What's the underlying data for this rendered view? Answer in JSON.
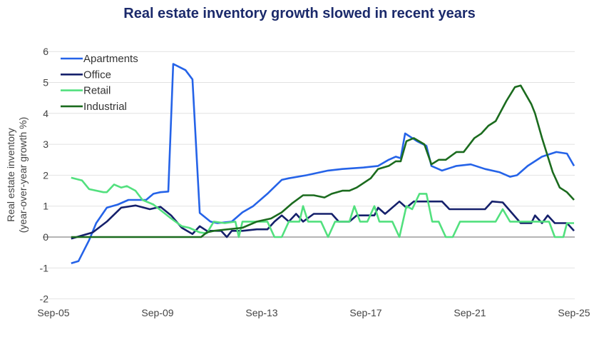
{
  "chart_data": {
    "type": "line",
    "title": "Real estate inventory growth slowed in recent years",
    "ylabel": [
      "Real estate inventory",
      "(year-over-year growth %)"
    ],
    "xlabel": "",
    "ylim": [
      -2,
      6
    ],
    "yticks": [
      -2,
      -1,
      0,
      1,
      2,
      3,
      4,
      5,
      6
    ],
    "xticks": [
      {
        "label": "Sep-05",
        "year": 2005.75
      },
      {
        "label": "Sep-09",
        "year": 2009.75
      },
      {
        "label": "Sep-13",
        "year": 2013.75
      },
      {
        "label": "Sep-17",
        "year": 2017.75
      },
      {
        "label": "Sep-21",
        "year": 2021.75
      },
      {
        "label": "Sep-25",
        "year": 2025.75
      }
    ],
    "grid": "horizontal",
    "legend": "top-left",
    "series": [
      {
        "name": "Apartments",
        "color": "#2563e8",
        "points": [
          [
            2006.43,
            -0.85
          ],
          [
            2006.71,
            -0.78
          ],
          [
            2007.12,
            -0.1
          ],
          [
            2007.39,
            0.45
          ],
          [
            2007.8,
            0.95
          ],
          [
            2008.22,
            1.05
          ],
          [
            2008.63,
            1.2
          ],
          [
            2009.31,
            1.2
          ],
          [
            2009.59,
            1.4
          ],
          [
            2009.86,
            1.45
          ],
          [
            2010.16,
            1.47
          ],
          [
            2010.35,
            5.6
          ],
          [
            2010.82,
            5.4
          ],
          [
            2011.09,
            5.1
          ],
          [
            2011.37,
            0.78
          ],
          [
            2011.78,
            0.5
          ],
          [
            2012.05,
            0.45
          ],
          [
            2012.6,
            0.5
          ],
          [
            2013.01,
            0.8
          ],
          [
            2013.42,
            1.0
          ],
          [
            2013.97,
            1.4
          ],
          [
            2014.52,
            1.85
          ],
          [
            2014.79,
            1.9
          ],
          [
            2015.48,
            2.0
          ],
          [
            2016.3,
            2.15
          ],
          [
            2016.85,
            2.2
          ],
          [
            2017.67,
            2.25
          ],
          [
            2018.22,
            2.3
          ],
          [
            2018.63,
            2.5
          ],
          [
            2018.9,
            2.6
          ],
          [
            2019.09,
            2.55
          ],
          [
            2019.26,
            3.35
          ],
          [
            2019.72,
            3.1
          ],
          [
            2020.08,
            2.95
          ],
          [
            2020.27,
            2.3
          ],
          [
            2020.68,
            2.15
          ],
          [
            2021.23,
            2.3
          ],
          [
            2021.78,
            2.35
          ],
          [
            2022.33,
            2.2
          ],
          [
            2022.88,
            2.1
          ],
          [
            2023.29,
            1.95
          ],
          [
            2023.56,
            2.0
          ],
          [
            2023.97,
            2.3
          ],
          [
            2024.52,
            2.6
          ],
          [
            2025.07,
            2.75
          ],
          [
            2025.48,
            2.7
          ],
          [
            2025.75,
            2.3
          ]
        ]
      },
      {
        "name": "Office",
        "color": "#15206b",
        "points": [
          [
            2006.43,
            -0.05
          ],
          [
            2007.26,
            0.15
          ],
          [
            2007.8,
            0.5
          ],
          [
            2008.35,
            0.95
          ],
          [
            2008.9,
            1.02
          ],
          [
            2009.45,
            0.9
          ],
          [
            2009.86,
            0.98
          ],
          [
            2010.27,
            0.7
          ],
          [
            2010.68,
            0.3
          ],
          [
            2011.09,
            0.1
          ],
          [
            2011.37,
            0.35
          ],
          [
            2011.64,
            0.2
          ],
          [
            2012.19,
            0.2
          ],
          [
            2012.41,
            0.0
          ],
          [
            2012.6,
            0.2
          ],
          [
            2013.01,
            0.2
          ],
          [
            2013.56,
            0.25
          ],
          [
            2013.97,
            0.25
          ],
          [
            2014.24,
            0.5
          ],
          [
            2014.52,
            0.7
          ],
          [
            2014.79,
            0.5
          ],
          [
            2015.07,
            0.75
          ],
          [
            2015.34,
            0.5
          ],
          [
            2015.75,
            0.75
          ],
          [
            2016.44,
            0.75
          ],
          [
            2016.71,
            0.5
          ],
          [
            2017.12,
            0.5
          ],
          [
            2017.4,
            0.7
          ],
          [
            2018.08,
            0.7
          ],
          [
            2018.22,
            0.95
          ],
          [
            2018.49,
            0.75
          ],
          [
            2019.04,
            1.15
          ],
          [
            2019.31,
            0.95
          ],
          [
            2019.59,
            1.15
          ],
          [
            2020.68,
            1.15
          ],
          [
            2020.96,
            0.9
          ],
          [
            2022.33,
            0.9
          ],
          [
            2022.6,
            1.15
          ],
          [
            2023.01,
            1.12
          ],
          [
            2023.7,
            0.45
          ],
          [
            2024.11,
            0.45
          ],
          [
            2024.25,
            0.7
          ],
          [
            2024.52,
            0.45
          ],
          [
            2024.74,
            0.7
          ],
          [
            2025.01,
            0.45
          ],
          [
            2025.48,
            0.45
          ],
          [
            2025.75,
            0.2
          ]
        ]
      },
      {
        "name": "Retail",
        "color": "#52e07e",
        "points": [
          [
            2006.43,
            1.92
          ],
          [
            2006.85,
            1.83
          ],
          [
            2007.12,
            1.55
          ],
          [
            2007.67,
            1.45
          ],
          [
            2007.8,
            1.45
          ],
          [
            2008.08,
            1.7
          ],
          [
            2008.35,
            1.6
          ],
          [
            2008.57,
            1.65
          ],
          [
            2008.9,
            1.5
          ],
          [
            2009.17,
            1.2
          ],
          [
            2009.59,
            1.05
          ],
          [
            2010.27,
            0.6
          ],
          [
            2010.68,
            0.35
          ],
          [
            2010.96,
            0.3
          ],
          [
            2011.37,
            0.15
          ],
          [
            2011.64,
            0.12
          ],
          [
            2011.91,
            0.5
          ],
          [
            2012.33,
            0.45
          ],
          [
            2012.74,
            0.5
          ],
          [
            2012.87,
            0.0
          ],
          [
            2013.01,
            0.5
          ],
          [
            2013.7,
            0.5
          ],
          [
            2013.97,
            0.5
          ],
          [
            2014.24,
            0.0
          ],
          [
            2014.52,
            0.0
          ],
          [
            2014.79,
            0.5
          ],
          [
            2015.2,
            0.5
          ],
          [
            2015.34,
            1.0
          ],
          [
            2015.53,
            0.5
          ],
          [
            2016.03,
            0.5
          ],
          [
            2016.3,
            0.0
          ],
          [
            2016.57,
            0.5
          ],
          [
            2017.12,
            0.5
          ],
          [
            2017.31,
            1.0
          ],
          [
            2017.53,
            0.5
          ],
          [
            2017.81,
            0.5
          ],
          [
            2018.08,
            1.0
          ],
          [
            2018.27,
            0.5
          ],
          [
            2018.77,
            0.5
          ],
          [
            2019.04,
            0.0
          ],
          [
            2019.31,
            1.0
          ],
          [
            2019.53,
            0.9
          ],
          [
            2019.81,
            1.4
          ],
          [
            2020.08,
            1.4
          ],
          [
            2020.3,
            0.5
          ],
          [
            2020.55,
            0.5
          ],
          [
            2020.82,
            0.0
          ],
          [
            2021.09,
            0.0
          ],
          [
            2021.37,
            0.5
          ],
          [
            2022.74,
            0.5
          ],
          [
            2023.01,
            0.9
          ],
          [
            2023.29,
            0.5
          ],
          [
            2024.79,
            0.5
          ],
          [
            2025.01,
            0.0
          ],
          [
            2025.34,
            0.0
          ],
          [
            2025.48,
            0.45
          ],
          [
            2025.75,
            0.45
          ]
        ]
      },
      {
        "name": "Industrial",
        "color": "#1b6b1e",
        "points": [
          [
            2006.43,
            0
          ],
          [
            2011.42,
            0
          ],
          [
            2011.64,
            0.15
          ],
          [
            2011.91,
            0.2
          ],
          [
            2013.01,
            0.3
          ],
          [
            2013.56,
            0.5
          ],
          [
            2014.11,
            0.6
          ],
          [
            2014.52,
            0.8
          ],
          [
            2014.93,
            1.1
          ],
          [
            2015.34,
            1.35
          ],
          [
            2015.75,
            1.35
          ],
          [
            2016.16,
            1.28
          ],
          [
            2016.44,
            1.4
          ],
          [
            2016.85,
            1.5
          ],
          [
            2017.12,
            1.5
          ],
          [
            2017.4,
            1.6
          ],
          [
            2017.94,
            1.9
          ],
          [
            2018.22,
            2.2
          ],
          [
            2018.63,
            2.3
          ],
          [
            2018.9,
            2.45
          ],
          [
            2019.09,
            2.45
          ],
          [
            2019.31,
            3.1
          ],
          [
            2019.59,
            3.2
          ],
          [
            2020.0,
            3.0
          ],
          [
            2020.27,
            2.35
          ],
          [
            2020.55,
            2.5
          ],
          [
            2020.82,
            2.5
          ],
          [
            2021.23,
            2.75
          ],
          [
            2021.51,
            2.75
          ],
          [
            2021.92,
            3.2
          ],
          [
            2022.19,
            3.35
          ],
          [
            2022.46,
            3.6
          ],
          [
            2022.74,
            3.75
          ],
          [
            2023.15,
            4.4
          ],
          [
            2023.48,
            4.85
          ],
          [
            2023.7,
            4.9
          ],
          [
            2024.11,
            4.3
          ],
          [
            2024.25,
            4.0
          ],
          [
            2024.52,
            3.2
          ],
          [
            2024.93,
            2.1
          ],
          [
            2025.2,
            1.6
          ],
          [
            2025.48,
            1.45
          ],
          [
            2025.75,
            1.2
          ]
        ]
      }
    ]
  }
}
